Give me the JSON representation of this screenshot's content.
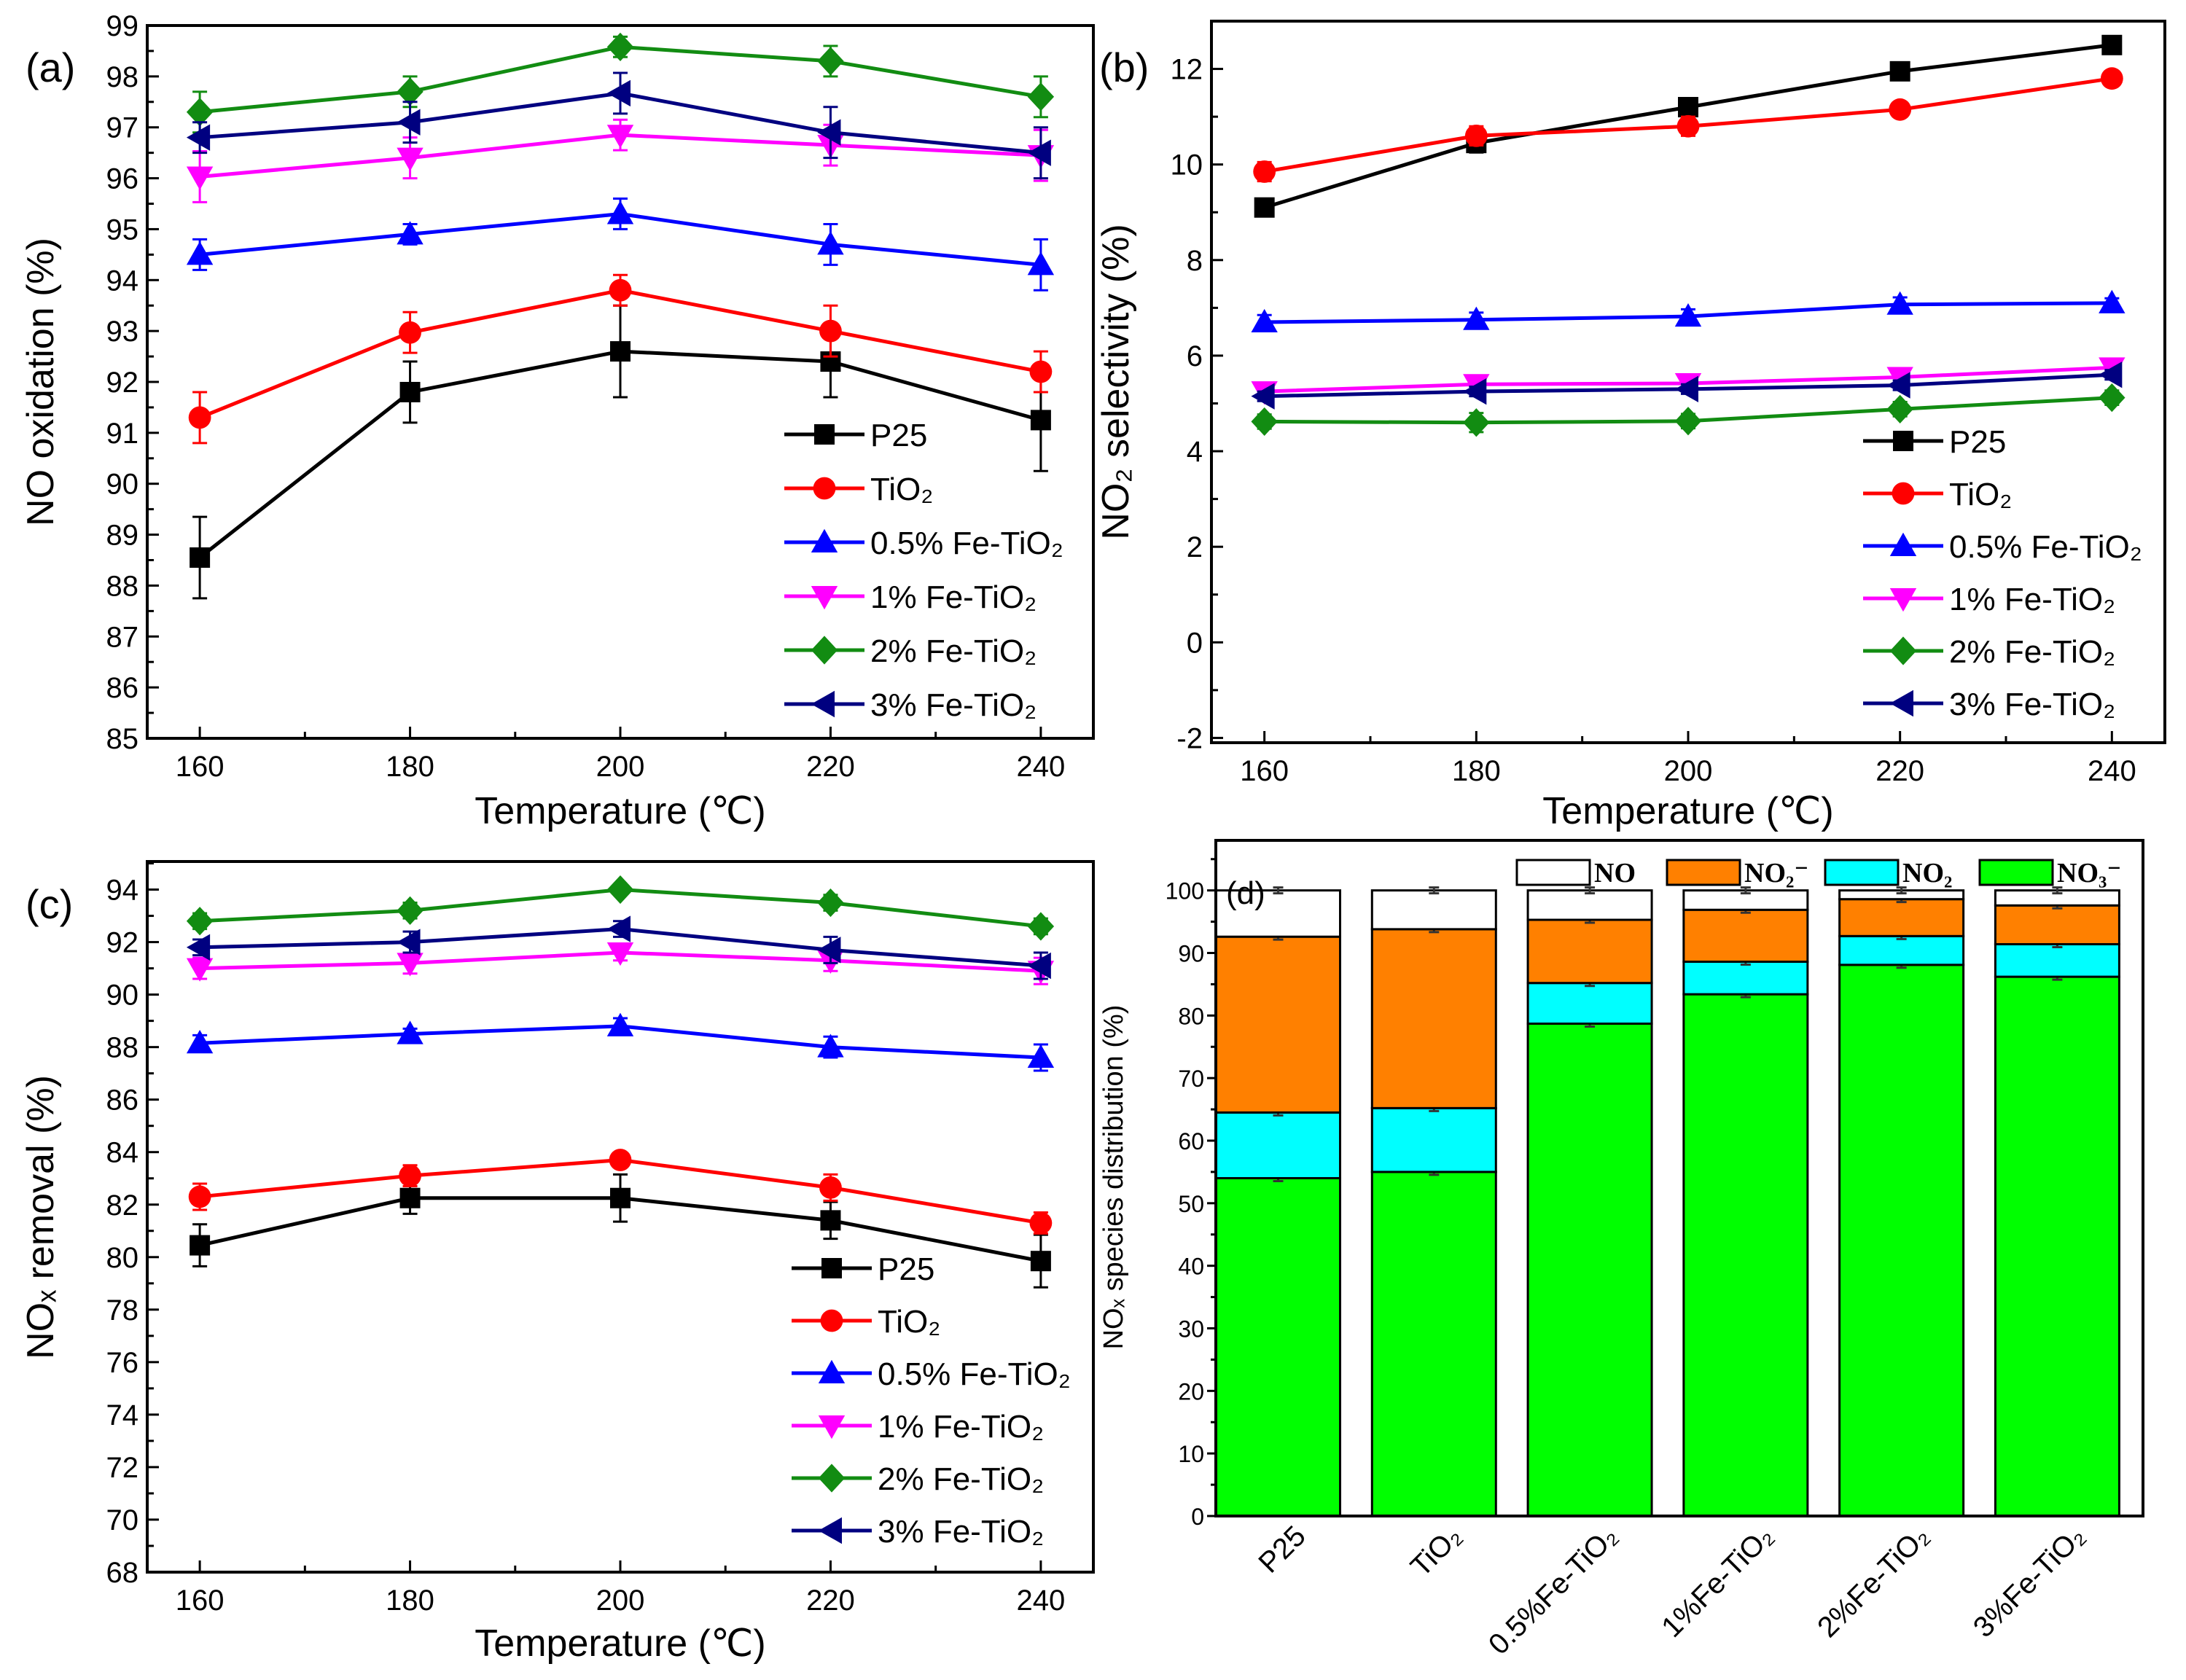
{
  "chart_data": [
    {
      "type": "line",
      "panel_label": "(a)",
      "xlabel": "Temperature (℃)",
      "ylabel": "NO oxidation (%)",
      "x": [
        160,
        180,
        200,
        220,
        240
      ],
      "xticks": [
        160,
        180,
        200,
        220,
        240
      ],
      "xlim": [
        155,
        245
      ],
      "ylim": [
        85,
        99
      ],
      "yticks": [
        85,
        86,
        87,
        88,
        89,
        90,
        91,
        92,
        93,
        94,
        95,
        96,
        97,
        98,
        99
      ],
      "legend_placement": "lower-right",
      "series": [
        {
          "name": "P25",
          "color": "#000000",
          "marker": "square",
          "values": [
            88.55,
            91.8,
            92.6,
            92.4,
            91.25
          ],
          "error": [
            0.8,
            0.6,
            0.9,
            0.7,
            1.0
          ]
        },
        {
          "name": "TiO₂",
          "color": "#ff0000",
          "marker": "circle",
          "values": [
            91.3,
            92.97,
            93.8,
            93.0,
            92.2
          ],
          "error": [
            0.5,
            0.4,
            0.3,
            0.5,
            0.4
          ]
        },
        {
          "name": "0.5% Fe-TiO₂",
          "color": "#0000ff",
          "marker": "triangle-up",
          "values": [
            94.5,
            94.9,
            95.3,
            94.7,
            94.3
          ],
          "error": [
            0.3,
            0.2,
            0.3,
            0.4,
            0.5
          ]
        },
        {
          "name": "1% Fe-TiO₂",
          "color": "#ff00ff",
          "marker": "triangle-down",
          "values": [
            96.03,
            96.4,
            96.85,
            96.65,
            96.45
          ],
          "error": [
            0.5,
            0.4,
            0.3,
            0.4,
            0.5
          ]
        },
        {
          "name": "2% Fe-TiO₂",
          "color": "#128c12",
          "marker": "diamond",
          "values": [
            97.3,
            97.7,
            98.58,
            98.3,
            97.6
          ],
          "error": [
            0.4,
            0.3,
            0.2,
            0.3,
            0.4
          ]
        },
        {
          "name": "3% Fe-TiO₂",
          "color": "#000080",
          "marker": "triangle-left",
          "values": [
            96.8,
            97.1,
            97.67,
            96.9,
            96.5
          ],
          "error": [
            0.3,
            0.4,
            0.4,
            0.5,
            0.5
          ]
        }
      ]
    },
    {
      "type": "line",
      "panel_label": "(b)",
      "xlabel": "Temperature (℃)",
      "ylabel": "NO₂ selectivity (%)",
      "x": [
        160,
        180,
        200,
        220,
        240
      ],
      "xticks": [
        160,
        180,
        200,
        220,
        240
      ],
      "xlim": [
        155,
        245
      ],
      "ylim": [
        -2.1,
        13
      ],
      "yticks": [
        -2,
        0,
        2,
        4,
        6,
        8,
        10,
        12
      ],
      "legend_placement": "lower-right",
      "series": [
        {
          "name": "P25",
          "color": "#000000",
          "marker": "square",
          "values": [
            9.1,
            10.45,
            11.2,
            11.95,
            12.5
          ],
          "error": [
            0.15,
            0.2,
            0.1,
            0.15,
            0.1
          ]
        },
        {
          "name": "TiO₂",
          "color": "#ff0000",
          "marker": "circle",
          "values": [
            9.85,
            10.6,
            10.8,
            11.15,
            11.8
          ],
          "error": [
            0.2,
            0.2,
            0.2,
            0.15,
            0.15
          ]
        },
        {
          "name": "0.5% Fe-TiO₂",
          "color": "#0000ff",
          "marker": "triangle-up",
          "values": [
            6.7,
            6.75,
            6.82,
            7.07,
            7.1
          ],
          "error": [
            0.15,
            0.15,
            0.15,
            0.15,
            0.1
          ]
        },
        {
          "name": "1% Fe-TiO₂",
          "color": "#ff00ff",
          "marker": "triangle-down",
          "values": [
            5.25,
            5.4,
            5.42,
            5.55,
            5.75
          ],
          "error": [
            0.15,
            0.15,
            0.15,
            0.15,
            0.15
          ]
        },
        {
          "name": "2% Fe-TiO₂",
          "color": "#128c12",
          "marker": "diamond",
          "values": [
            4.62,
            4.6,
            4.63,
            4.88,
            5.12
          ],
          "error": [
            0.15,
            0.2,
            0.15,
            0.15,
            0.15
          ]
        },
        {
          "name": "3% Fe-TiO₂",
          "color": "#000080",
          "marker": "triangle-left",
          "values": [
            5.15,
            5.25,
            5.3,
            5.38,
            5.6
          ],
          "error": [
            0.1,
            0.1,
            0.1,
            0.1,
            0.1
          ]
        }
      ]
    },
    {
      "type": "line",
      "panel_label": "(c)",
      "xlabel": "Temperature (℃)",
      "ylabel": "NOₓ removal (%)",
      "x": [
        160,
        180,
        200,
        220,
        240
      ],
      "xticks": [
        160,
        180,
        200,
        220,
        240
      ],
      "xlim": [
        155,
        245
      ],
      "ylim": [
        68,
        95.07
      ],
      "yticks": [
        68,
        70,
        72,
        74,
        76,
        78,
        80,
        82,
        84,
        86,
        88,
        90,
        92,
        94
      ],
      "legend_placement": "lower-right",
      "series": [
        {
          "name": "P25",
          "color": "#000000",
          "marker": "square",
          "values": [
            80.45,
            82.25,
            82.25,
            81.4,
            79.85
          ],
          "error": [
            0.8,
            0.6,
            0.9,
            0.7,
            1.0
          ]
        },
        {
          "name": "TiO₂",
          "color": "#ff0000",
          "marker": "circle",
          "values": [
            82.3,
            83.1,
            83.7,
            82.65,
            81.3
          ],
          "error": [
            0.5,
            0.4,
            0.2,
            0.5,
            0.4
          ]
        },
        {
          "name": "0.5% Fe-TiO₂",
          "color": "#0000ff",
          "marker": "triangle-up",
          "values": [
            88.15,
            88.5,
            88.8,
            88.0,
            87.6
          ],
          "error": [
            0.3,
            0.2,
            0.3,
            0.4,
            0.5
          ]
        },
        {
          "name": "1% Fe-TiO₂",
          "color": "#ff00ff",
          "marker": "triangle-down",
          "values": [
            91.0,
            91.2,
            91.6,
            91.3,
            90.9
          ],
          "error": [
            0.4,
            0.4,
            0.3,
            0.4,
            0.5
          ]
        },
        {
          "name": "2% Fe-TiO₂",
          "color": "#128c12",
          "marker": "diamond",
          "values": [
            92.8,
            93.2,
            94.0,
            93.5,
            92.6
          ],
          "error": [
            0.3,
            0.3,
            0.2,
            0.3,
            0.3
          ]
        },
        {
          "name": "3% Fe-TiO₂",
          "color": "#000080",
          "marker": "triangle-left",
          "values": [
            91.8,
            92.0,
            92.5,
            91.7,
            91.1
          ],
          "error": [
            0.3,
            0.4,
            0.3,
            0.5,
            0.5
          ]
        }
      ]
    },
    {
      "type": "bar",
      "stacked": true,
      "panel_label": "(d)",
      "xlabel": "",
      "ylabel": "NOₓ species distribution (%)",
      "categories": [
        "P25",
        "TiO₂",
        "0.5%Fe-TiO₂",
        "1%Fe-TiO₂",
        "2%Fe-TiO₂",
        "3%Fe-TiO₂"
      ],
      "ylim": [
        0,
        108
      ],
      "yticks": [
        0,
        10,
        20,
        30,
        40,
        50,
        60,
        70,
        80,
        90,
        100
      ],
      "legend_placement": "top",
      "series": [
        {
          "name": "NO₃⁻",
          "color": "#00ff00",
          "values": [
            54.0,
            55.0,
            78.7,
            83.4,
            88.1,
            86.2
          ]
        },
        {
          "name": "NO₂",
          "color": "#00ffff",
          "values": [
            10.5,
            10.2,
            6.5,
            5.2,
            4.6,
            5.2
          ]
        },
        {
          "name": "NO₂⁻",
          "color": "#ff8000",
          "values": [
            28.1,
            28.6,
            10.1,
            8.3,
            5.9,
            6.2
          ]
        },
        {
          "name": "NO",
          "color": "#ffffff",
          "values": [
            7.4,
            6.2,
            4.7,
            3.1,
            1.4,
            2.4
          ]
        }
      ],
      "legend_order": [
        "NO",
        "NO₂⁻",
        "NO₂",
        "NO₃⁻"
      ]
    }
  ]
}
